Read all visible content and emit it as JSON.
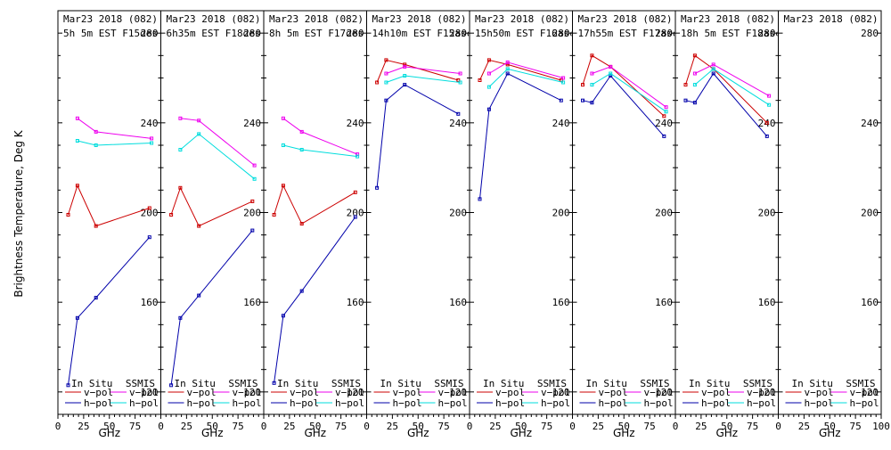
{
  "figure": {
    "ylabel": "Brightness Temperature, Deg K",
    "xlabel": "GHz",
    "legend": {
      "insitu_label": "In Situ",
      "ssmis_label": "SSMIS",
      "vpol_label": "v−pol",
      "hpol_label": "h−pol"
    }
  },
  "colors": {
    "insitu_v": "#cc0000",
    "insitu_h": "#0000aa",
    "ssmis_v": "#ee00ee",
    "ssmis_h": "#00dddd",
    "axis": "#000000"
  },
  "chart_data": [
    {
      "type": "line",
      "title": "Mar23 2018 (082)",
      "subtitle": "5h 5m  EST F15des",
      "xlim": [
        0,
        100
      ],
      "ylim": [
        110,
        290
      ],
      "yticks": [
        120,
        160,
        200,
        240,
        280
      ],
      "xtick_labels": [
        "0",
        "25",
        "50",
        "75"
      ],
      "series": [
        {
          "name": "In Situ v-pol",
          "x": [
            10,
            19,
            37,
            89
          ],
          "y": [
            199,
            212,
            194,
            202
          ]
        },
        {
          "name": "In Situ h-pol",
          "x": [
            10,
            19,
            37,
            89
          ],
          "y": [
            123,
            153,
            162,
            189
          ]
        },
        {
          "name": "SSMIS v-pol",
          "x": [
            19,
            37,
            91
          ],
          "y": [
            242,
            236,
            233
          ]
        },
        {
          "name": "SSMIS h-pol",
          "x": [
            19,
            37,
            91
          ],
          "y": [
            232,
            230,
            231
          ]
        }
      ]
    },
    {
      "type": "line",
      "title": "Mar23 2018 (082)",
      "subtitle": "6h35m  EST F18des",
      "xlim": [
        0,
        100
      ],
      "ylim": [
        110,
        290
      ],
      "yticks": [
        120,
        160,
        200,
        240,
        280
      ],
      "xtick_labels": [
        "0",
        "25",
        "50",
        "75"
      ],
      "series": [
        {
          "name": "In Situ v-pol",
          "x": [
            10,
            19,
            37,
            89
          ],
          "y": [
            199,
            211,
            194,
            205
          ]
        },
        {
          "name": "In Situ h-pol",
          "x": [
            10,
            19,
            37,
            89
          ],
          "y": [
            123,
            153,
            163,
            192
          ]
        },
        {
          "name": "SSMIS v-pol",
          "x": [
            19,
            37,
            91
          ],
          "y": [
            242,
            241,
            221
          ]
        },
        {
          "name": "SSMIS h-pol",
          "x": [
            19,
            37,
            91
          ],
          "y": [
            228,
            235,
            215
          ]
        }
      ]
    },
    {
      "type": "line",
      "title": "Mar23 2018 (082)",
      "subtitle": "8h 5m  EST F17des",
      "xlim": [
        0,
        100
      ],
      "ylim": [
        110,
        290
      ],
      "yticks": [
        120,
        160,
        200,
        240,
        280
      ],
      "xtick_labels": [
        "0",
        "25",
        "50",
        "75"
      ],
      "series": [
        {
          "name": "In Situ v-pol",
          "x": [
            10,
            19,
            37,
            89
          ],
          "y": [
            199,
            212,
            195,
            209
          ]
        },
        {
          "name": "In Situ h-pol",
          "x": [
            10,
            19,
            37,
            89
          ],
          "y": [
            124,
            154,
            165,
            198
          ]
        },
        {
          "name": "SSMIS v-pol",
          "x": [
            19,
            37,
            91
          ],
          "y": [
            242,
            236,
            226
          ]
        },
        {
          "name": "SSMIS h-pol",
          "x": [
            19,
            37,
            91
          ],
          "y": [
            230,
            228,
            225
          ]
        }
      ]
    },
    {
      "type": "line",
      "title": "Mar23 2018 (082)",
      "subtitle": "14h10m  EST F15asc",
      "xlim": [
        0,
        100
      ],
      "ylim": [
        110,
        290
      ],
      "yticks": [
        120,
        160,
        200,
        240,
        280
      ],
      "xtick_labels": [
        "0",
        "25",
        "50",
        "75"
      ],
      "series": [
        {
          "name": "In Situ v-pol",
          "x": [
            10,
            19,
            37,
            89
          ],
          "y": [
            258,
            268,
            266,
            259
          ]
        },
        {
          "name": "In Situ h-pol",
          "x": [
            10,
            19,
            37,
            89
          ],
          "y": [
            211,
            250,
            257,
            244
          ]
        },
        {
          "name": "SSMIS v-pol",
          "x": [
            19,
            37,
            91
          ],
          "y": [
            262,
            265,
            262
          ]
        },
        {
          "name": "SSMIS h-pol",
          "x": [
            19,
            37,
            91
          ],
          "y": [
            258,
            261,
            258
          ]
        }
      ]
    },
    {
      "type": "line",
      "title": "Mar23 2018 (082)",
      "subtitle": "15h50m  EST F16asc",
      "xlim": [
        0,
        100
      ],
      "ylim": [
        110,
        290
      ],
      "yticks": [
        120,
        160,
        200,
        240,
        280
      ],
      "xtick_labels": [
        "0",
        "25",
        "50",
        "75"
      ],
      "series": [
        {
          "name": "In Situ v-pol",
          "x": [
            10,
            19,
            37,
            89
          ],
          "y": [
            259,
            268,
            266,
            259
          ]
        },
        {
          "name": "In Situ h-pol",
          "x": [
            10,
            19,
            37,
            89
          ],
          "y": [
            206,
            246,
            262,
            250
          ]
        },
        {
          "name": "SSMIS v-pol",
          "x": [
            19,
            37,
            91
          ],
          "y": [
            262,
            267,
            260
          ]
        },
        {
          "name": "SSMIS h-pol",
          "x": [
            19,
            37,
            91
          ],
          "y": [
            256,
            264,
            258
          ]
        }
      ]
    },
    {
      "type": "line",
      "title": "Mar23 2018 (082)",
      "subtitle": "17h55m  EST F17asc",
      "xlim": [
        0,
        100
      ],
      "ylim": [
        110,
        290
      ],
      "yticks": [
        120,
        160,
        200,
        240,
        280
      ],
      "xtick_labels": [
        "0",
        "25",
        "50",
        "75"
      ],
      "series": [
        {
          "name": "In Situ v-pol",
          "x": [
            10,
            19,
            37,
            89
          ],
          "y": [
            257,
            270,
            265,
            243
          ]
        },
        {
          "name": "In Situ h-pol",
          "x": [
            10,
            19,
            37,
            89
          ],
          "y": [
            250,
            249,
            261,
            234
          ]
        },
        {
          "name": "SSMIS v-pol",
          "x": [
            19,
            37,
            91
          ],
          "y": [
            262,
            265,
            247
          ]
        },
        {
          "name": "SSMIS h-pol",
          "x": [
            19,
            37,
            91
          ],
          "y": [
            257,
            262,
            245
          ]
        }
      ]
    },
    {
      "type": "line",
      "title": "Mar23 2018 (082)",
      "subtitle": "18h 5m  EST F18asc",
      "xlim": [
        0,
        100
      ],
      "ylim": [
        110,
        290
      ],
      "yticks": [
        120,
        160,
        200,
        240,
        280
      ],
      "xtick_labels": [
        "0",
        "25",
        "50",
        "75"
      ],
      "series": [
        {
          "name": "In Situ v-pol",
          "x": [
            10,
            19,
            37,
            89
          ],
          "y": [
            257,
            270,
            264,
            240
          ]
        },
        {
          "name": "In Situ h-pol",
          "x": [
            10,
            19,
            37,
            89
          ],
          "y": [
            250,
            249,
            262,
            234
          ]
        },
        {
          "name": "SSMIS v-pol",
          "x": [
            19,
            37,
            91
          ],
          "y": [
            262,
            266,
            252
          ]
        },
        {
          "name": "SSMIS h-pol",
          "x": [
            19,
            37,
            91
          ],
          "y": [
            257,
            264,
            248
          ]
        }
      ]
    },
    {
      "type": "line",
      "title": "Mar23 2018 (082)",
      "subtitle": "",
      "xlim": [
        0,
        100
      ],
      "ylim": [
        110,
        290
      ],
      "yticks": [
        120,
        160,
        200,
        240,
        280
      ],
      "xtick_labels": [
        "0",
        "25",
        "50",
        "75",
        "100"
      ],
      "series": []
    }
  ]
}
